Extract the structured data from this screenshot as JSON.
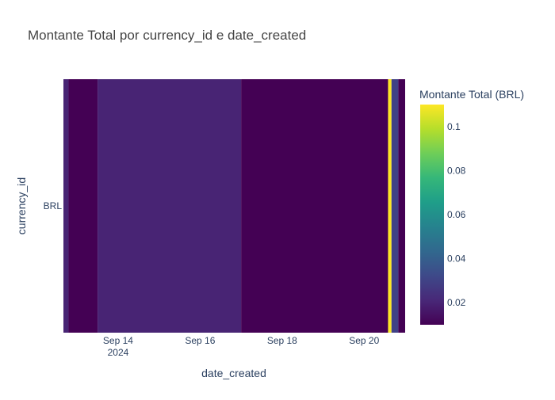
{
  "chart_data": {
    "type": "heatmap",
    "title": "Montante Total por currency_id e date_created",
    "xlabel": "date_created",
    "ylabel": "currency_id",
    "y_categories": [
      "BRL"
    ],
    "x_ticks": [
      {
        "label": "Sep 14",
        "sublabel": "2024",
        "date": "2024-09-14"
      },
      {
        "label": "Sep 16",
        "sublabel": "",
        "date": "2024-09-16"
      },
      {
        "label": "Sep 18",
        "sublabel": "",
        "date": "2024-09-18"
      },
      {
        "label": "Sep 20",
        "sublabel": "",
        "date": "2024-09-20"
      }
    ],
    "xlim": [
      "2024-09-12T16:00",
      "2024-09-21T00:00"
    ],
    "cells": [
      {
        "start": "2024-09-12T16:00",
        "end": "2024-09-12T19:00",
        "y": "BRL",
        "value": 0.02
      },
      {
        "start": "2024-09-12T19:00",
        "end": "2024-09-13T12:00",
        "y": "BRL",
        "value": 0.01
      },
      {
        "start": "2024-09-13T12:00",
        "end": "2024-09-17T00:00",
        "y": "BRL",
        "value": 0.02
      },
      {
        "start": "2024-09-17T00:00",
        "end": "2024-09-20T14:00",
        "y": "BRL",
        "value": 0.01
      },
      {
        "start": "2024-09-20T14:00",
        "end": "2024-09-20T16:00",
        "y": "BRL",
        "value": 0.11
      },
      {
        "start": "2024-09-20T16:00",
        "end": "2024-09-20T20:00",
        "y": "BRL",
        "value": 0.03
      },
      {
        "start": "2024-09-20T20:00",
        "end": "2024-09-21T00:00",
        "y": "BRL",
        "value": 0.01
      }
    ],
    "colorbar": {
      "title": "Montante Total (BRL)",
      "colorscale": "Viridis",
      "range": [
        0.01,
        0.11
      ],
      "ticks": [
        0.02,
        0.04,
        0.06,
        0.08,
        0.1
      ],
      "tick_labels": [
        "0.02",
        "0.04",
        "0.06",
        "0.08",
        "0.1"
      ]
    },
    "colors": {
      "text": "#2a3f5f",
      "title": "#444444",
      "viridis": [
        "#440154",
        "#482878",
        "#3e4989",
        "#31688e",
        "#26828e",
        "#1f9e89",
        "#35b779",
        "#6ece58",
        "#b5de2b",
        "#fde725"
      ]
    },
    "grid": false,
    "legend": "right"
  }
}
